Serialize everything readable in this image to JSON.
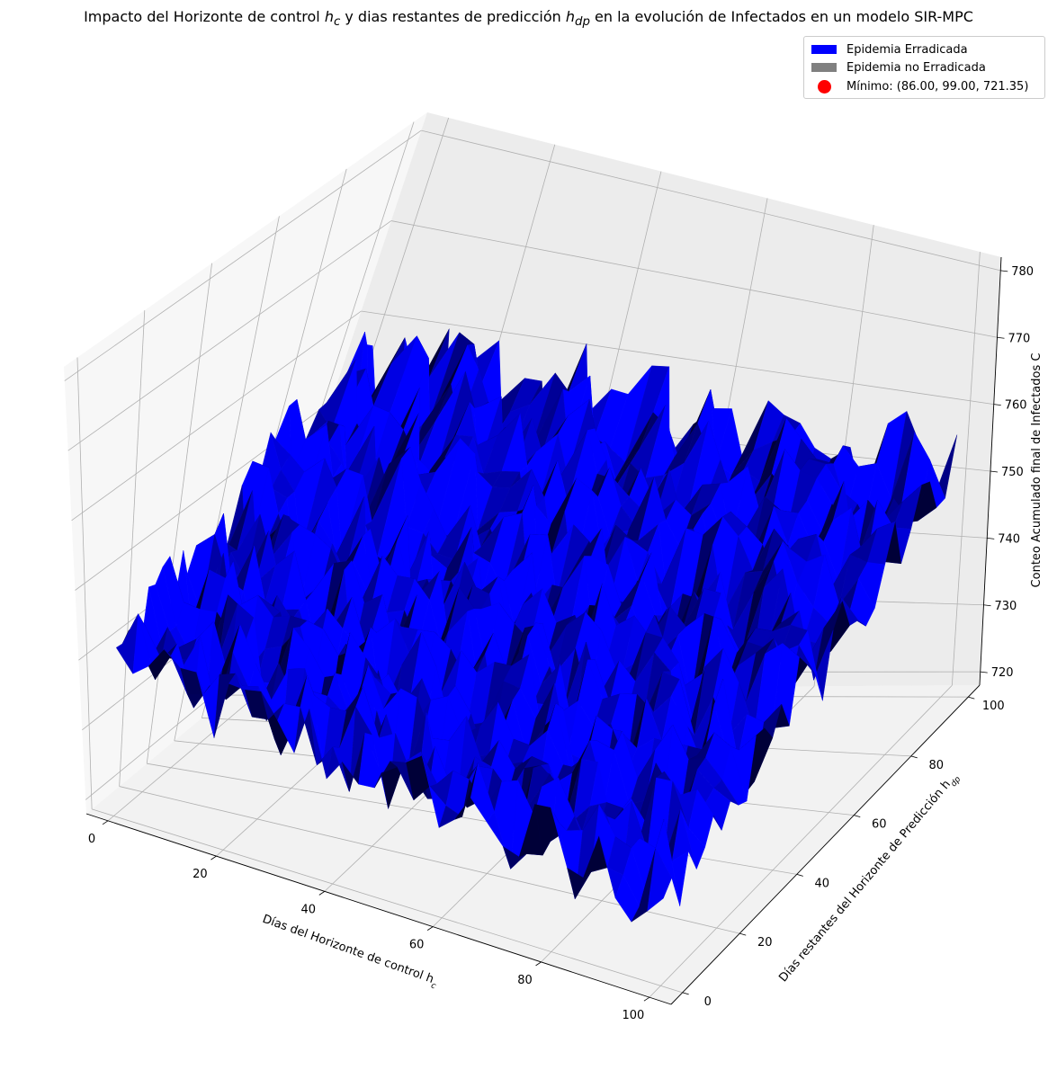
{
  "chart_data": {
    "type": "surface3d",
    "title": "Impacto del Horizonte de control h_c y dias restantes de predicción h_dp en la evolución de Infectados en un modelo SIR-MPC",
    "title_parts": {
      "p1": "Impacto del Horizonte de control ",
      "h": "h",
      "c": "c",
      "p2": " y dias restantes de predicción ",
      "dp": "dp",
      "p3": " en la evolución de Infectados en un modelo SIR-MPC"
    },
    "xlabel": "Días del Horizonte de control h_c",
    "xlabel_parts": {
      "main": "Días del Horizonte de control h",
      "sub": "c"
    },
    "ylabel": "Días restantes del Horizonte de Predicción h_dp",
    "ylabel_parts": {
      "main": "Días restantes del Horizonte de Predicción h",
      "sub": "dp"
    },
    "zlabel": "Conteo Acumulado final de Infectados C",
    "x_ticks": [
      "0",
      "20",
      "40",
      "60",
      "80",
      "100"
    ],
    "y_ticks": [
      "0",
      "20",
      "40",
      "60",
      "80",
      "100"
    ],
    "z_ticks": [
      "720",
      "730",
      "740",
      "750",
      "760",
      "770",
      "780"
    ],
    "xlim": [
      -4,
      104
    ],
    "ylim": [
      -4,
      104
    ],
    "zlim": [
      718,
      782
    ],
    "grid": true,
    "legend_position": "top-right",
    "legend": [
      {
        "label": "Epidemia Erradicada",
        "color": "#0000ff",
        "kind": "patch"
      },
      {
        "label": "Epidemia no Erradicada",
        "color": "#808080",
        "kind": "patch"
      },
      {
        "label": "Mínimo: (86.00, 99.00, 721.35)",
        "color": "#ff0000",
        "kind": "point"
      }
    ],
    "minimum": {
      "x": 86,
      "y": 99,
      "z": 721.35
    },
    "surface": {
      "x_range": [
        1,
        100
      ],
      "y_range": [
        1,
        100
      ],
      "color": "#0000ff",
      "approx_z_at_corners": {
        "x1_y100": 757,
        "x100_y100": 752,
        "x1_y1": 740,
        "x100_y1": 730
      },
      "approx_z_center": 736,
      "noise_amplitude": 6
    }
  }
}
